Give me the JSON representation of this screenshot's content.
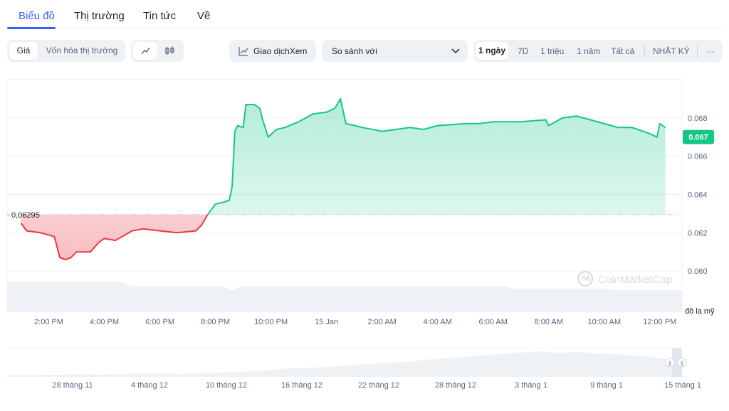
{
  "tabs": [
    {
      "label": "Biểu đồ",
      "active": true
    },
    {
      "label": "Thị trường",
      "active": false
    },
    {
      "label": "Tin tức",
      "active": false
    },
    {
      "label": "Về",
      "active": false
    }
  ],
  "toolbar": {
    "price_label": "Giá",
    "marketcap_label": "Vốn hóa thị trường",
    "line_icon": "line-chart-icon",
    "candle_icon": "candlestick-icon",
    "trade_label": "Giao dịchXem",
    "trade_icon": "trading-chart-icon",
    "compare_label": "So sánh với",
    "ranges": [
      "1 ngày",
      "7D",
      "1 triệu",
      "1 năm",
      "Tất cả"
    ],
    "active_range": "1 ngày",
    "log_label": "NHẬT KÝ",
    "more_label": "···"
  },
  "colors": {
    "accent": "#3861fb",
    "up": "#16c784",
    "down": "#ea3943"
  },
  "watermark": "CoinMarketCap",
  "chart_data": {
    "type": "area",
    "baseline": 0.06295,
    "baseline_label": "0,06295",
    "current_label": "0.067",
    "y_ticks": [
      "0.068",
      "0.066",
      "0.064",
      "0.062",
      "0.060"
    ],
    "ylim": [
      0.0593,
      0.07
    ],
    "ylabel": "đô la mỹ",
    "x_ticks": [
      "2:00 PM",
      "4:00 PM",
      "6:00 PM",
      "8:00 PM",
      "10:00 PM",
      "15 Jan",
      "2:00 AM",
      "4:00 AM",
      "6:00 AM",
      "8:00 AM",
      "10:00 AM",
      "12:00 PM"
    ],
    "xlim": [
      12.5,
      36.8
    ],
    "x": [
      13.0,
      13.2,
      13.7,
      14.2,
      14.4,
      14.6,
      14.8,
      15.0,
      15.5,
      15.8,
      16.0,
      16.4,
      17.0,
      17.4,
      18.0,
      18.6,
      19.3,
      19.5,
      19.7,
      20.0,
      20.3,
      20.5,
      20.6,
      20.7,
      20.8,
      21.0,
      21.1,
      21.4,
      21.6,
      21.7,
      21.9,
      22.2,
      22.5,
      23.0,
      23.5,
      24.0,
      24.3,
      24.5,
      24.7,
      25.3,
      26.0,
      26.5,
      27.0,
      27.5,
      28.0,
      29.0,
      29.5,
      30.0,
      31.0,
      31.9,
      32.0,
      32.5,
      33.0,
      33.5,
      34.0,
      34.5,
      35.0,
      35.6,
      35.9,
      36.0,
      36.2
    ],
    "y": [
      0.0625,
      0.0621,
      0.062,
      0.0618,
      0.0607,
      0.0606,
      0.0607,
      0.061,
      0.061,
      0.0615,
      0.0617,
      0.0616,
      0.0621,
      0.0622,
      0.0621,
      0.062,
      0.0621,
      0.0624,
      0.0629,
      0.0635,
      0.0636,
      0.0637,
      0.0644,
      0.0673,
      0.0676,
      0.0675,
      0.0687,
      0.0687,
      0.0685,
      0.0679,
      0.067,
      0.0674,
      0.0675,
      0.0678,
      0.0682,
      0.0683,
      0.0685,
      0.069,
      0.0677,
      0.0675,
      0.0673,
      0.0674,
      0.0675,
      0.0674,
      0.0676,
      0.0677,
      0.0677,
      0.0678,
      0.0678,
      0.0679,
      0.0676,
      0.068,
      0.0681,
      0.0679,
      0.0677,
      0.0675,
      0.0675,
      0.0672,
      0.067,
      0.0677,
      0.0675
    ],
    "grid": true
  },
  "navigator": {
    "x_ticks": [
      "28 tháng 11",
      "4 tháng 12",
      "10 tháng 12",
      "16 tháng 12",
      "22 tháng 12",
      "28 tháng 12",
      "3 tháng 1",
      "9 tháng 1",
      "15 tháng 1"
    ],
    "handle_left": "||",
    "handle_right": "||"
  }
}
